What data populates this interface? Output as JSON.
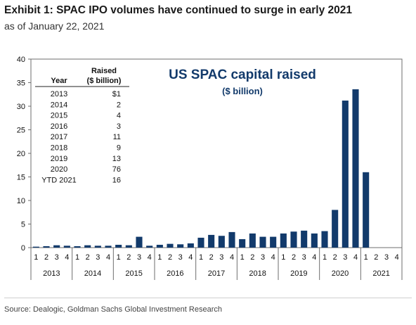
{
  "header": {
    "title": "Exhibit 1: SPAC IPO volumes have continued to surge in early 2021",
    "subtitle": "as of January 22, 2021"
  },
  "footer": {
    "source": "Source: Dealogic, Goldman Sachs Global Investment Research"
  },
  "colors": {
    "bar": "#123a6b",
    "text": "#111111",
    "inner_title": "#123a6b"
  },
  "chart_data": {
    "type": "bar",
    "title": "US SPAC capital raised",
    "subtitle": "($ billion)",
    "xlabel": "",
    "ylabel": "",
    "ylim": [
      0,
      40
    ],
    "yticks": [
      0,
      5,
      10,
      15,
      20,
      25,
      30,
      35,
      40
    ],
    "grid": false,
    "categories": [
      "1",
      "2",
      "3",
      "4",
      "1",
      "2",
      "3",
      "4",
      "1",
      "2",
      "3",
      "4",
      "1",
      "2",
      "3",
      "4",
      "1",
      "2",
      "3",
      "4",
      "1",
      "2",
      "3",
      "4",
      "1",
      "2",
      "3",
      "4",
      "1",
      "2",
      "3",
      "4",
      "1",
      "2",
      "3",
      "4"
    ],
    "groups": [
      {
        "label": "2013",
        "start": 0,
        "count": 4
      },
      {
        "label": "2014",
        "start": 4,
        "count": 4
      },
      {
        "label": "2015",
        "start": 8,
        "count": 4
      },
      {
        "label": "2016",
        "start": 12,
        "count": 4
      },
      {
        "label": "2017",
        "start": 16,
        "count": 4
      },
      {
        "label": "2018",
        "start": 20,
        "count": 4
      },
      {
        "label": "2019",
        "start": 24,
        "count": 4
      },
      {
        "label": "2020",
        "start": 28,
        "count": 4
      },
      {
        "label": "2021",
        "start": 32,
        "count": 4
      }
    ],
    "values": [
      0.2,
      0.3,
      0.5,
      0.4,
      0.3,
      0.5,
      0.4,
      0.4,
      0.6,
      0.5,
      2.3,
      0.4,
      0.6,
      0.8,
      0.7,
      0.9,
      2.1,
      2.7,
      2.5,
      3.3,
      1.8,
      3.0,
      2.3,
      2.3,
      3.0,
      3.4,
      3.6,
      3.0,
      3.5,
      8.0,
      31.2,
      33.6,
      16.0,
      0,
      0,
      0
    ],
    "table": {
      "headers": [
        [
          "Year",
          ""
        ],
        [
          "Raised",
          "($ billion)"
        ]
      ],
      "rows": [
        {
          "year": "2013",
          "raised": "$1"
        },
        {
          "year": "2014",
          "raised": "2"
        },
        {
          "year": "2015",
          "raised": "4"
        },
        {
          "year": "2016",
          "raised": "3"
        },
        {
          "year": "2017",
          "raised": "11"
        },
        {
          "year": "2018",
          "raised": "9"
        },
        {
          "year": "2019",
          "raised": "13"
        },
        {
          "year": "2020",
          "raised": "76"
        },
        {
          "year": "YTD 2021",
          "raised": "16"
        }
      ]
    }
  }
}
